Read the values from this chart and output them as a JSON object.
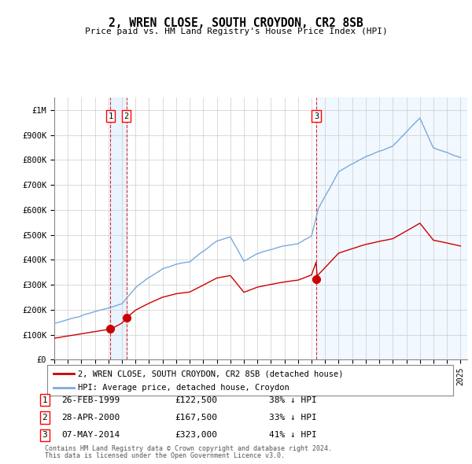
{
  "title": "2, WREN CLOSE, SOUTH CROYDON, CR2 8SB",
  "subtitle": "Price paid vs. HM Land Registry's House Price Index (HPI)",
  "ylabel_ticks": [
    "£0",
    "£100K",
    "£200K",
    "£300K",
    "£400K",
    "£500K",
    "£600K",
    "£700K",
    "£800K",
    "£900K",
    "£1M"
  ],
  "ytick_values": [
    0,
    100000,
    200000,
    300000,
    400000,
    500000,
    600000,
    700000,
    800000,
    900000,
    1000000
  ],
  "ylim": [
    0,
    1050000
  ],
  "xlim_start": 1995.0,
  "xlim_end": 2025.5,
  "transactions": [
    {
      "num": 1,
      "date_num": 1999.15,
      "price": 122500,
      "label": "26-FEB-1999",
      "pct": "38%"
    },
    {
      "num": 2,
      "date_num": 2000.32,
      "price": 167500,
      "label": "28-APR-2000",
      "pct": "33%"
    },
    {
      "num": 3,
      "date_num": 2014.35,
      "price": 323000,
      "label": "07-MAY-2014",
      "pct": "41%"
    }
  ],
  "legend_line1": "2, WREN CLOSE, SOUTH CROYDON, CR2 8SB (detached house)",
  "legend_line2": "HPI: Average price, detached house, Croydon",
  "footer1": "Contains HM Land Registry data © Crown copyright and database right 2024.",
  "footer2": "This data is licensed under the Open Government Licence v3.0.",
  "hpi_color": "#7aaadd",
  "price_color": "#cc0000",
  "vline_color": "#cc0000",
  "background_color": "#ffffff",
  "grid_color": "#cccccc",
  "shade_color": "#ddeeff"
}
